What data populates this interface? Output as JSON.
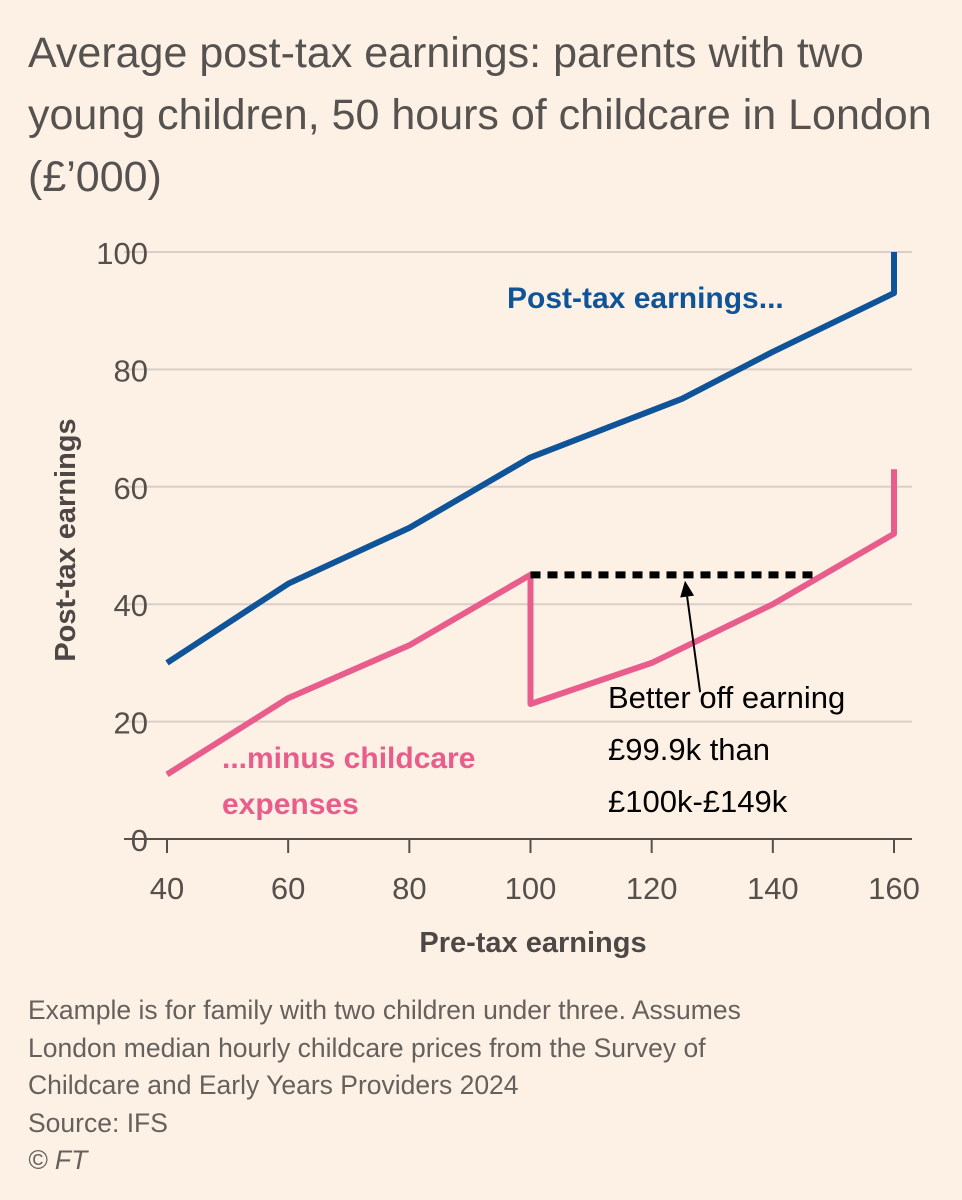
{
  "chart_data": {
    "type": "line",
    "title": "Average post-tax earnings: parents with two young children, 50 hours of childcare in London (£’000)",
    "xlabel": "Pre-tax earnings",
    "ylabel": "Post-tax earnings",
    "xlim": [
      40,
      160
    ],
    "ylim": [
      0,
      100
    ],
    "x_ticks": [
      "40",
      "60",
      "80",
      "100",
      "120",
      "140",
      "160"
    ],
    "y_ticks": [
      "0",
      "20",
      "40",
      "60",
      "80",
      "100"
    ],
    "grid": "horizontal",
    "series": [
      {
        "name": "Post-tax earnings...",
        "color": "#0f5499",
        "points": [
          [
            40,
            30
          ],
          [
            60,
            43.5
          ],
          [
            80,
            53
          ],
          [
            100,
            65
          ],
          [
            125,
            75
          ],
          [
            140,
            83
          ],
          [
            160,
            93
          ],
          [
            160,
            100
          ]
        ]
      },
      {
        "name": "...minus childcare expenses",
        "color": "#e95d8c",
        "points": [
          [
            40,
            11
          ],
          [
            60,
            24
          ],
          [
            80,
            33
          ],
          [
            100,
            45
          ],
          [
            100,
            23
          ],
          [
            120,
            30
          ],
          [
            140,
            40
          ],
          [
            160,
            52
          ],
          [
            160,
            63
          ]
        ]
      }
    ],
    "annotations": {
      "dotted_line": {
        "x_start": 100,
        "x_end": 147,
        "y": 45,
        "color": "#000000"
      },
      "arrow": {
        "x_from": 128,
        "y_from": 25,
        "x_to": 125.5,
        "y_to": 44
      },
      "label_lines": [
        "Better off earning",
        "£99.9k than",
        "£100k-£149k"
      ]
    }
  },
  "footnote": {
    "lines": [
      "Example is for family with two children under three. Assumes",
      "London median hourly childcare prices from the Survey of",
      "Childcare and Early Years Providers 2024"
    ],
    "source": "Source: IFS",
    "copyright": "© FT"
  }
}
